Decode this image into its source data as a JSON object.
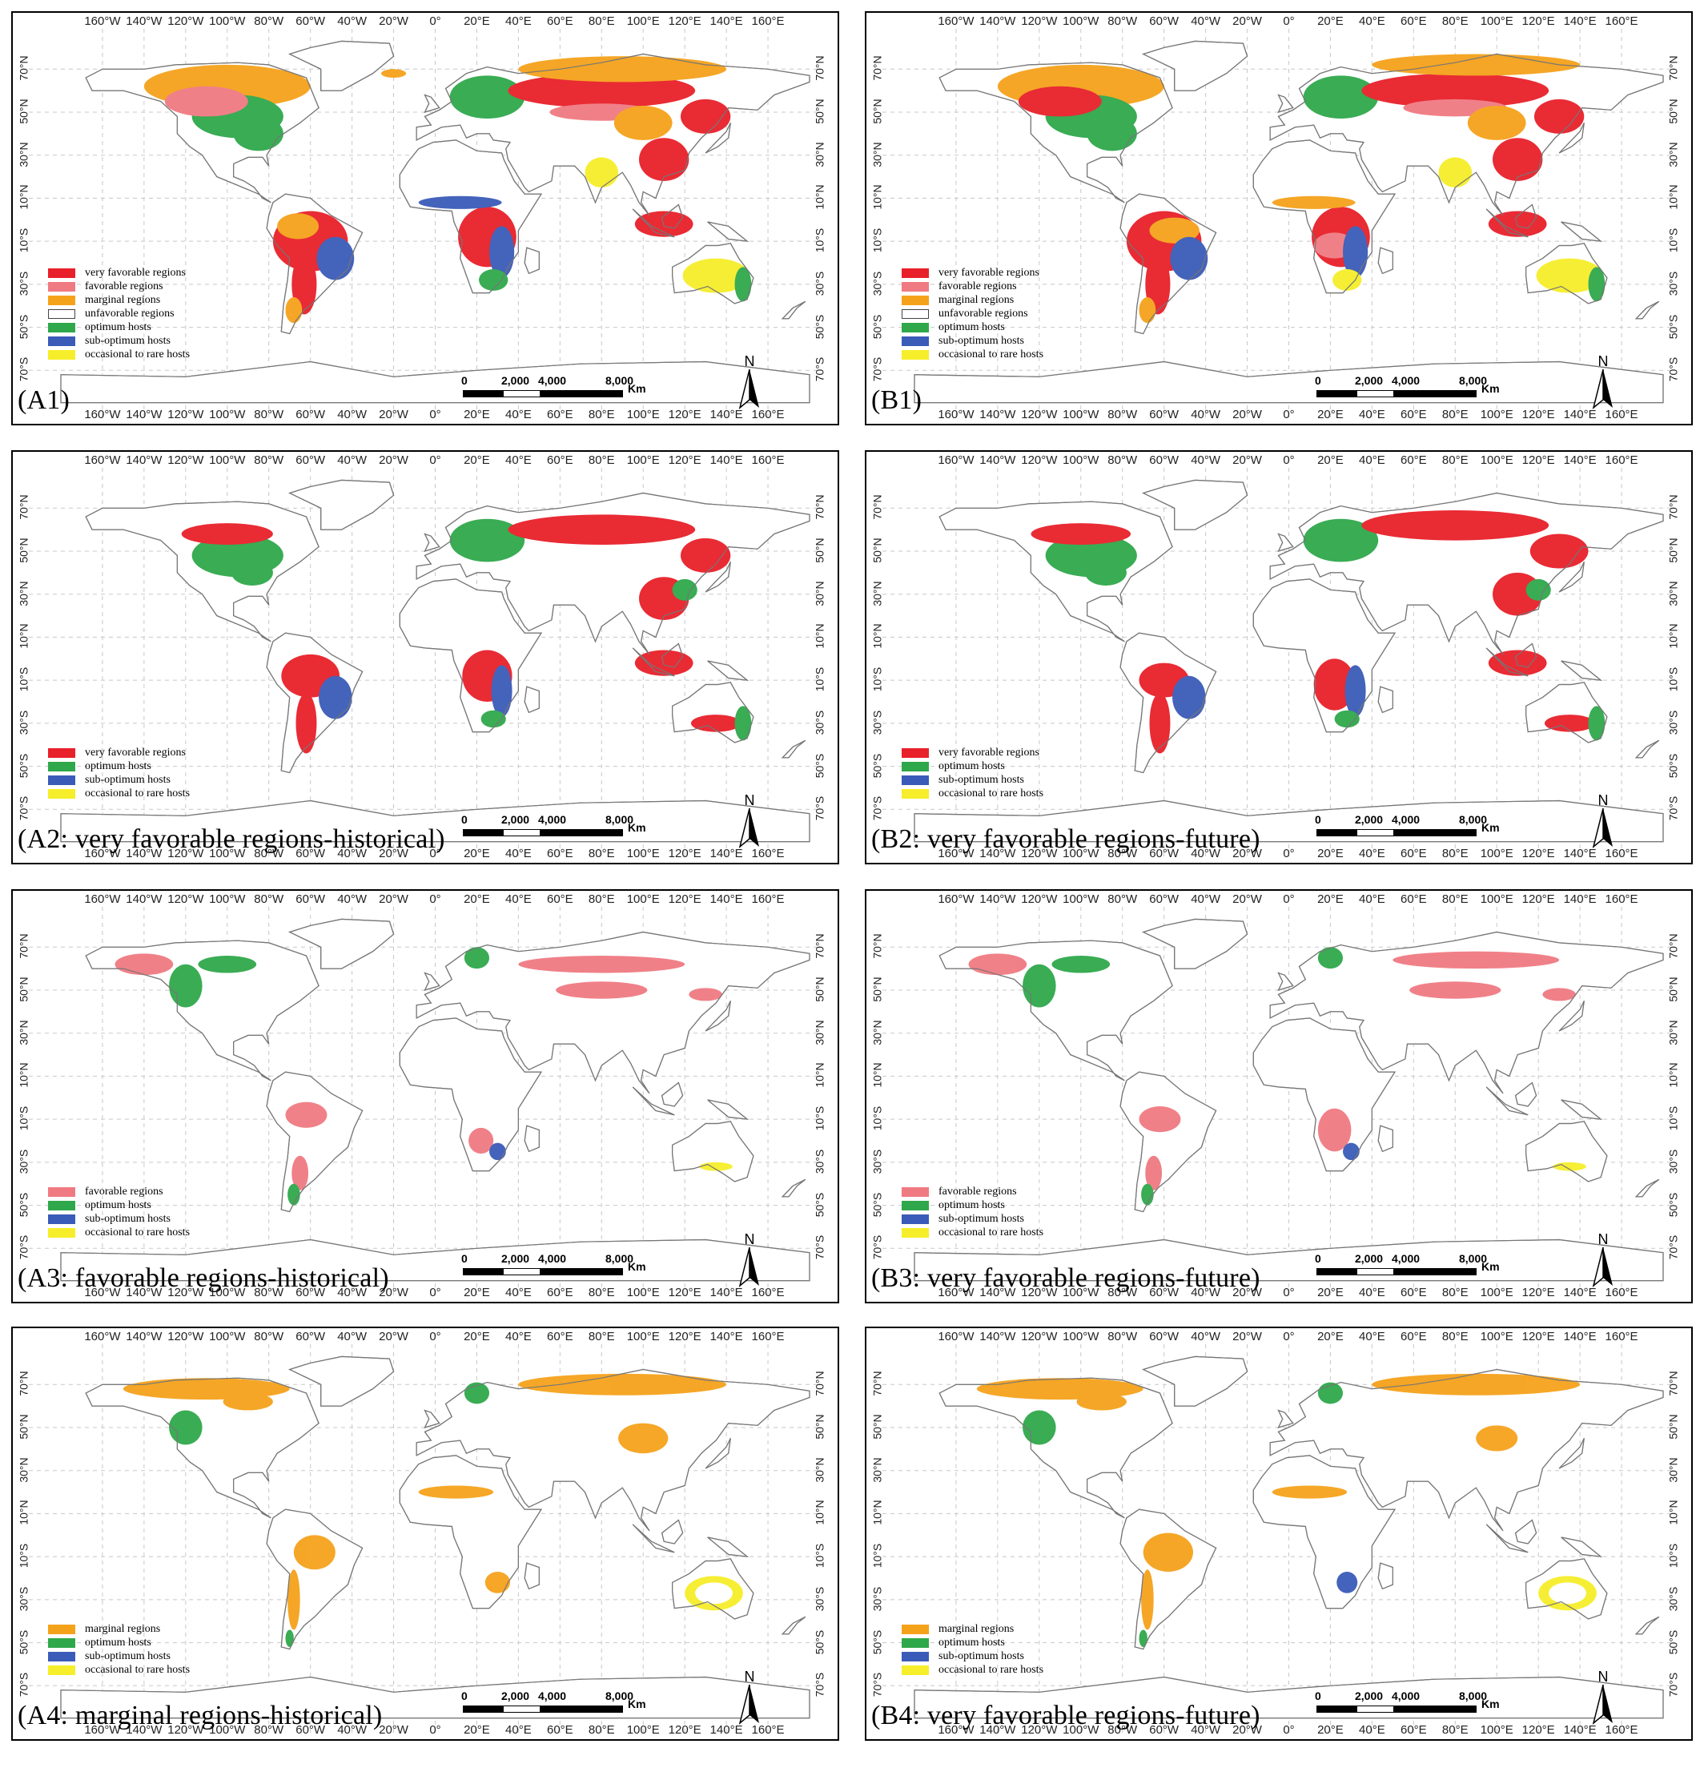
{
  "longitude_ticks": [
    "160°W",
    "140°W",
    "120°W",
    "100°W",
    "80°W",
    "60°W",
    "40°W",
    "20°W",
    "0°",
    "20°E",
    "40°E",
    "60°E",
    "80°E",
    "100°E",
    "120°E",
    "140°E",
    "160°E"
  ],
  "latitude_ticks": [
    "70°N",
    "50°N",
    "30°N",
    "10°N",
    "10°S",
    "30°S",
    "50°S",
    "70°S"
  ],
  "scale": {
    "zero": "0",
    "t1": "2,000",
    "t2": "4,000",
    "t3": "8,000",
    "unit": "Km"
  },
  "north_label": "N",
  "colors": {
    "very_favorable": "#e8202a",
    "favorable": "#f07a82",
    "marginal": "#f5a21b",
    "unfavorable": "#ffffff",
    "optimum": "#2fa84b",
    "sub_optimum": "#3a5bb8",
    "occasional": "#f6ee2a"
  },
  "panels": [
    {
      "id": "A1",
      "label": "(A1)",
      "legend": [
        "very favorable regions",
        "favorable regions",
        "marginal regions",
        "unfavorable regions",
        "optimum hosts",
        "sub-optimum hosts",
        "occasional to rare hosts"
      ],
      "legend_keys": [
        "very_favorable",
        "favorable",
        "marginal",
        "unfavorable",
        "optimum",
        "sub_optimum",
        "occasional"
      ]
    },
    {
      "id": "B1",
      "label": "(B1)",
      "legend": [
        "very favorable regions",
        "favorable regions",
        "marginal regions",
        "unfavorable regions",
        "optimum hosts",
        "sub-optimum hosts",
        "occasional to rare hosts"
      ],
      "legend_keys": [
        "very_favorable",
        "favorable",
        "marginal",
        "unfavorable",
        "optimum",
        "sub_optimum",
        "occasional"
      ]
    },
    {
      "id": "A2",
      "label": "(A2: very favorable regions-historical)",
      "legend": [
        "very favorable regions",
        "optimum hosts",
        "sub-optimum hosts",
        "occasional to rare hosts"
      ],
      "legend_keys": [
        "very_favorable",
        "optimum",
        "sub_optimum",
        "occasional"
      ]
    },
    {
      "id": "B2",
      "label": "(B2: very favorable regions-future)",
      "legend": [
        "very favorable regions",
        "optimum hosts",
        "sub-optimum hosts",
        "occasional to rare hosts"
      ],
      "legend_keys": [
        "very_favorable",
        "optimum",
        "sub_optimum",
        "occasional"
      ]
    },
    {
      "id": "A3",
      "label": "(A3: favorable regions-historical)",
      "legend": [
        "favorable regions",
        "optimum hosts",
        "sub-optimum hosts",
        "occasional to rare hosts"
      ],
      "legend_keys": [
        "favorable",
        "optimum",
        "sub_optimum",
        "occasional"
      ]
    },
    {
      "id": "B3",
      "label": "(B3: very favorable regions-future)",
      "legend": [
        "favorable regions",
        "optimum hosts",
        "sub-optimum hosts",
        "occasional to rare hosts"
      ],
      "legend_keys": [
        "favorable",
        "optimum",
        "sub_optimum",
        "occasional"
      ]
    },
    {
      "id": "A4",
      "label": "(A4: marginal regions-historical)",
      "legend": [
        "marginal regions",
        "optimum hosts",
        "sub-optimum hosts",
        "occasional to rare hosts"
      ],
      "legend_keys": [
        "marginal",
        "optimum",
        "sub_optimum",
        "occasional"
      ]
    },
    {
      "id": "B4",
      "label": "(B4: very favorable regions-future)",
      "legend": [
        "marginal regions",
        "optimum hosts",
        "sub-optimum hosts",
        "occasional to rare hosts"
      ],
      "legend_keys": [
        "marginal",
        "optimum",
        "sub_optimum",
        "occasional"
      ]
    }
  ]
}
